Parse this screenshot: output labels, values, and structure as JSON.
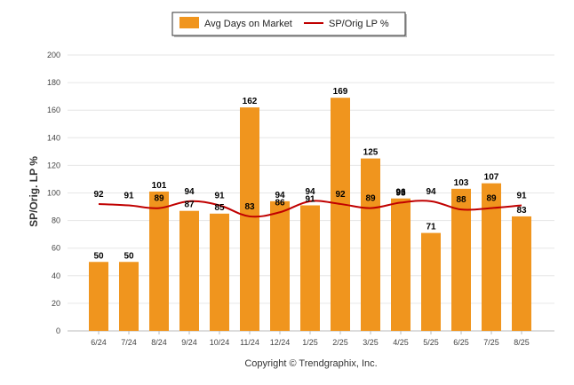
{
  "chart_data": {
    "type": "bar",
    "ylabel": "SP/Orig. LP %",
    "ylim": [
      0,
      200
    ],
    "yticks": [
      0,
      20,
      40,
      60,
      80,
      100,
      120,
      140,
      160,
      180,
      200
    ],
    "categories": [
      "6/24",
      "7/24",
      "8/24",
      "9/24",
      "10/24",
      "11/24",
      "12/24",
      "1/25",
      "2/25",
      "3/25",
      "4/25",
      "5/25",
      "6/25",
      "7/25",
      "8/25"
    ],
    "series": [
      {
        "name": "Avg Days on Market",
        "type": "bar",
        "color": "#f0951e",
        "values": [
          50,
          50,
          101,
          87,
          85,
          162,
          94,
          91,
          169,
          125,
          96,
          71,
          103,
          107,
          83
        ]
      },
      {
        "name": "SP/Orig LP %",
        "type": "line",
        "color": "#c00000",
        "values": [
          92,
          91,
          89,
          94,
          91,
          83,
          86,
          94,
          92,
          89,
          93,
          94,
          88,
          89,
          91
        ]
      }
    ],
    "legend_position": "top-center",
    "grid": true
  },
  "footer": {
    "copyright": "Copyright © Trendgraphix, Inc."
  }
}
